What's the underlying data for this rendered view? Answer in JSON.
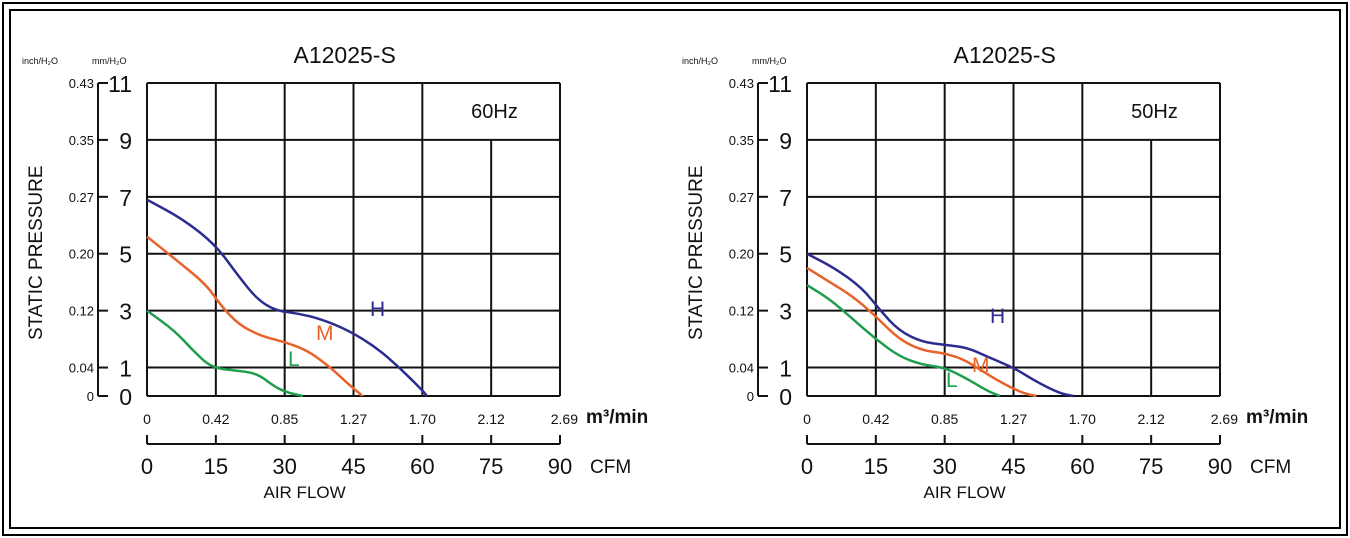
{
  "chart_data": [
    {
      "type": "line",
      "title": "A12025-S",
      "frequency_label": "60Hz",
      "ylabel": "STATIC PRESSURE",
      "xlabel": "AIR FLOW",
      "y_unit_inch": "inch/H₂O",
      "y_unit_mm": "mm/H₂O",
      "x_unit_m3": "m³/min",
      "x_unit_cfm": "CFM",
      "ylim": [
        0,
        11
      ],
      "xlim_cfm": [
        0,
        90
      ],
      "y_ticks_mm": [
        "0",
        "1",
        "3",
        "5",
        "7",
        "9",
        "11"
      ],
      "y_ticks_inch": [
        "0",
        "0.04",
        "0.12",
        "0.20",
        "0.27",
        "0.35",
        "0.43"
      ],
      "x_ticks_m3": [
        "0",
        "0.42",
        "0.85",
        "1.27",
        "1.70",
        "2.12",
        "2.69"
      ],
      "x_ticks_cfm": [
        "0",
        "15",
        "30",
        "45",
        "60",
        "75",
        "90"
      ],
      "series": [
        {
          "name": "H",
          "color": "#2b2c8f",
          "points": [
            [
              0,
              6.9
            ],
            [
              8,
              6.2
            ],
            [
              15,
              5.3
            ],
            [
              20,
              4.2
            ],
            [
              24,
              3.4
            ],
            [
              28,
              3.0
            ],
            [
              33,
              2.9
            ],
            [
              38,
              2.7
            ],
            [
              44,
              2.3
            ],
            [
              50,
              1.7
            ],
            [
              55,
              1.0
            ],
            [
              60,
              0.2
            ],
            [
              61,
              0
            ]
          ]
        },
        {
          "name": "M",
          "color": "#e8632b",
          "points": [
            [
              0,
              5.6
            ],
            [
              7,
              4.7
            ],
            [
              13,
              3.9
            ],
            [
              16,
              3.2
            ],
            [
              20,
              2.5
            ],
            [
              25,
              2.1
            ],
            [
              30,
              1.9
            ],
            [
              35,
              1.6
            ],
            [
              40,
              1.0
            ],
            [
              44,
              0.4
            ],
            [
              47,
              0
            ]
          ]
        },
        {
          "name": "L",
          "color": "#1e9e4c",
          "points": [
            [
              0,
              3.0
            ],
            [
              6,
              2.3
            ],
            [
              10,
              1.6
            ],
            [
              14,
              1.0
            ],
            [
              19,
              0.9
            ],
            [
              24,
              0.8
            ],
            [
              28,
              0.3
            ],
            [
              31,
              0.1
            ],
            [
              34,
              0
            ]
          ]
        }
      ]
    },
    {
      "type": "line",
      "title": "A12025-S",
      "frequency_label": "50Hz",
      "ylabel": "STATIC PRESSURE",
      "xlabel": "AIR FLOW",
      "y_unit_inch": "inch/H₂O",
      "y_unit_mm": "mm/H₂O",
      "x_unit_m3": "m³/min",
      "x_unit_cfm": "CFM",
      "ylim": [
        0,
        11
      ],
      "xlim_cfm": [
        0,
        90
      ],
      "y_ticks_mm": [
        "0",
        "1",
        "3",
        "5",
        "7",
        "9",
        "11"
      ],
      "y_ticks_inch": [
        "0",
        "0.04",
        "0.12",
        "0.20",
        "0.27",
        "0.35",
        "0.43"
      ],
      "x_ticks_m3": [
        "0",
        "0.42",
        "0.85",
        "1.27",
        "1.70",
        "2.12",
        "2.69"
      ],
      "x_ticks_cfm": [
        "0",
        "15",
        "30",
        "45",
        "60",
        "75",
        "90"
      ],
      "series": [
        {
          "name": "H",
          "color": "#2b2c8f",
          "points": [
            [
              0,
              5.0
            ],
            [
              6,
              4.5
            ],
            [
              12,
              3.8
            ],
            [
              16,
              3.0
            ],
            [
              20,
              2.3
            ],
            [
              25,
              1.9
            ],
            [
              30,
              1.8
            ],
            [
              35,
              1.7
            ],
            [
              39,
              1.4
            ],
            [
              45,
              1.0
            ],
            [
              50,
              0.5
            ],
            [
              55,
              0.1
            ],
            [
              58,
              0
            ]
          ]
        },
        {
          "name": "M",
          "color": "#e8632b",
          "points": [
            [
              0,
              4.5
            ],
            [
              5,
              4.0
            ],
            [
              10,
              3.5
            ],
            [
              15,
              2.8
            ],
            [
              20,
              2.0
            ],
            [
              25,
              1.6
            ],
            [
              30,
              1.5
            ],
            [
              34,
              1.3
            ],
            [
              38,
              0.9
            ],
            [
              42,
              0.5
            ],
            [
              47,
              0.1
            ],
            [
              50,
              0
            ]
          ]
        },
        {
          "name": "L",
          "color": "#1e9e4c",
          "points": [
            [
              0,
              3.9
            ],
            [
              5,
              3.4
            ],
            [
              10,
              2.7
            ],
            [
              15,
              2.0
            ],
            [
              20,
              1.4
            ],
            [
              25,
              1.1
            ],
            [
              30,
              1.0
            ],
            [
              35,
              0.6
            ],
            [
              39,
              0.2
            ],
            [
              42,
              0
            ]
          ]
        }
      ]
    }
  ]
}
